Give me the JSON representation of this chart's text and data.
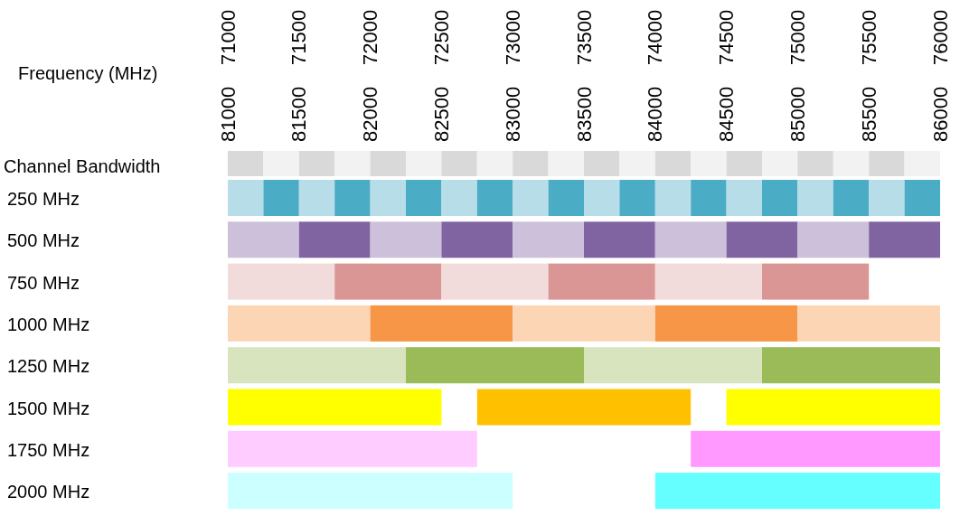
{
  "chart_data": {
    "type": "bar",
    "orientation": "horizontal",
    "xlabel": "Frequency (MHz)",
    "categories": [
      "Channel Bandwidth",
      "250 MHz",
      "500 MHz",
      "750 MHz",
      "1000 MHz",
      "1250 MHz",
      "1500 MHz",
      "1750 MHz",
      "2000 MHz"
    ],
    "xlim": [
      71000,
      76000
    ],
    "xticks": [
      71000,
      71500,
      72000,
      72500,
      73000,
      73500,
      74000,
      74500,
      75000,
      75500,
      76000
    ],
    "x2lim": [
      81000,
      86000
    ],
    "x2ticks": [
      81000,
      81500,
      82000,
      82500,
      83000,
      83500,
      84000,
      84500,
      85000,
      85500,
      86000
    ],
    "series": [
      {
        "values": [
          250,
          250,
          500,
          750,
          1000,
          1250,
          1500,
          1750,
          2000
        ],
        "base": [
          71000,
          71000,
          71000,
          71000,
          71000,
          71000,
          71000,
          71000,
          71000
        ],
        "colors": [
          "#d9d9d9",
          "#b7dde8",
          "#ccc0da",
          "#f2dcdb",
          "#fcd5b5",
          "#d7e4bd",
          "#ffff00",
          "#ffccff",
          "#ccffff"
        ]
      },
      {
        "values": [
          250,
          250,
          500,
          750,
          1000,
          1250,
          1500,
          1750,
          2000
        ],
        "base": [
          71250,
          71250,
          71500,
          71750,
          72000,
          72250,
          72750,
          74250,
          74000
        ],
        "colors": [
          "#f2f2f2",
          "#4bacc6",
          "#8064a2",
          "#da9694",
          "#f79646",
          "#9bbb59",
          "#ffc000",
          "#ff99ff",
          "#66ffff"
        ]
      },
      {
        "values": [
          250,
          250,
          500,
          750,
          1000,
          1250,
          1500,
          null,
          null
        ],
        "base": [
          71500,
          71500,
          72000,
          72500,
          73000,
          73500,
          74500,
          null,
          null
        ],
        "colors": [
          "#d9d9d9",
          "#b7dde8",
          "#ccc0da",
          "#f2dcdb",
          "#fcd5b5",
          "#d7e4bd",
          "#ffff00",
          null,
          null
        ]
      },
      {
        "values": [
          250,
          250,
          500,
          750,
          1000,
          1250,
          null,
          null,
          null
        ],
        "base": [
          71750,
          71750,
          72500,
          73250,
          74000,
          74750,
          null,
          null,
          null
        ],
        "colors": [
          "#f2f2f2",
          "#4bacc6",
          "#8064a2",
          "#da9694",
          "#f79646",
          "#9bbb59",
          null,
          null,
          null
        ]
      },
      {
        "values": [
          250,
          250,
          500,
          750,
          1000,
          null,
          null,
          null,
          null
        ],
        "base": [
          72000,
          72000,
          73000,
          74000,
          75000,
          null,
          null,
          null,
          null
        ],
        "colors": [
          "#d9d9d9",
          "#b7dde8",
          "#ccc0da",
          "#f2dcdb",
          "#fcd5b5",
          null,
          null,
          null,
          null
        ]
      },
      {
        "values": [
          250,
          250,
          500,
          750,
          null,
          null,
          null,
          null,
          null
        ],
        "base": [
          72250,
          72250,
          73500,
          74750,
          null,
          null,
          null,
          null,
          null
        ],
        "colors": [
          "#f2f2f2",
          "#4bacc6",
          "#8064a2",
          "#da9694",
          null,
          null,
          null,
          null,
          null
        ]
      },
      {
        "values": [
          250,
          250,
          500,
          null,
          null,
          null,
          null,
          null,
          null
        ],
        "base": [
          72500,
          72500,
          74000,
          null,
          null,
          null,
          null,
          null,
          null
        ],
        "colors": [
          "#d9d9d9",
          "#b7dde8",
          "#ccc0da",
          null,
          null,
          null,
          null,
          null,
          null
        ]
      },
      {
        "values": [
          250,
          250,
          500,
          null,
          null,
          null,
          null,
          null,
          null
        ],
        "base": [
          72750,
          72750,
          74500,
          null,
          null,
          null,
          null,
          null,
          null
        ],
        "colors": [
          "#f2f2f2",
          "#4bacc6",
          "#8064a2",
          null,
          null,
          null,
          null,
          null,
          null
        ]
      },
      {
        "values": [
          250,
          250,
          500,
          null,
          null,
          null,
          null,
          null,
          null
        ],
        "base": [
          73000,
          73000,
          75000,
          null,
          null,
          null,
          null,
          null,
          null
        ],
        "colors": [
          "#d9d9d9",
          "#b7dde8",
          "#ccc0da",
          null,
          null,
          null,
          null,
          null,
          null
        ]
      },
      {
        "values": [
          250,
          250,
          500,
          null,
          null,
          null,
          null,
          null,
          null
        ],
        "base": [
          73250,
          73250,
          75500,
          null,
          null,
          null,
          null,
          null,
          null
        ],
        "colors": [
          "#f2f2f2",
          "#4bacc6",
          "#8064a2",
          null,
          null,
          null,
          null,
          null,
          null
        ]
      },
      {
        "values": [
          250,
          250,
          null,
          null,
          null,
          null,
          null,
          null,
          null
        ],
        "base": [
          73500,
          73500,
          null,
          null,
          null,
          null,
          null,
          null,
          null
        ],
        "colors": [
          "#d9d9d9",
          "#b7dde8",
          null,
          null,
          null,
          null,
          null,
          null,
          null
        ]
      },
      {
        "values": [
          250,
          250,
          null,
          null,
          null,
          null,
          null,
          null,
          null
        ],
        "base": [
          73750,
          73750,
          null,
          null,
          null,
          null,
          null,
          null,
          null
        ],
        "colors": [
          "#f2f2f2",
          "#4bacc6",
          null,
          null,
          null,
          null,
          null,
          null,
          null
        ]
      },
      {
        "values": [
          250,
          250,
          null,
          null,
          null,
          null,
          null,
          null,
          null
        ],
        "base": [
          74000,
          74000,
          null,
          null,
          null,
          null,
          null,
          null,
          null
        ],
        "colors": [
          "#d9d9d9",
          "#b7dde8",
          null,
          null,
          null,
          null,
          null,
          null,
          null
        ]
      },
      {
        "values": [
          250,
          250,
          null,
          null,
          null,
          null,
          null,
          null,
          null
        ],
        "base": [
          74250,
          74250,
          null,
          null,
          null,
          null,
          null,
          null,
          null
        ],
        "colors": [
          "#f2f2f2",
          "#4bacc6",
          null,
          null,
          null,
          null,
          null,
          null,
          null
        ]
      },
      {
        "values": [
          250,
          250,
          null,
          null,
          null,
          null,
          null,
          null,
          null
        ],
        "base": [
          74500,
          74500,
          null,
          null,
          null,
          null,
          null,
          null,
          null
        ],
        "colors": [
          "#d9d9d9",
          "#b7dde8",
          null,
          null,
          null,
          null,
          null,
          null,
          null
        ]
      },
      {
        "values": [
          250,
          250,
          null,
          null,
          null,
          null,
          null,
          null,
          null
        ],
        "base": [
          74750,
          74750,
          null,
          null,
          null,
          null,
          null,
          null,
          null
        ],
        "colors": [
          "#f2f2f2",
          "#4bacc6",
          null,
          null,
          null,
          null,
          null,
          null,
          null
        ]
      },
      {
        "values": [
          250,
          250,
          null,
          null,
          null,
          null,
          null,
          null,
          null
        ],
        "base": [
          75000,
          75000,
          null,
          null,
          null,
          null,
          null,
          null,
          null
        ],
        "colors": [
          "#d9d9d9",
          "#b7dde8",
          null,
          null,
          null,
          null,
          null,
          null,
          null
        ]
      },
      {
        "values": [
          250,
          250,
          null,
          null,
          null,
          null,
          null,
          null,
          null
        ],
        "base": [
          75250,
          75250,
          null,
          null,
          null,
          null,
          null,
          null,
          null
        ],
        "colors": [
          "#f2f2f2",
          "#4bacc6",
          null,
          null,
          null,
          null,
          null,
          null,
          null
        ]
      },
      {
        "values": [
          250,
          250,
          null,
          null,
          null,
          null,
          null,
          null,
          null
        ],
        "base": [
          75500,
          75500,
          null,
          null,
          null,
          null,
          null,
          null,
          null
        ],
        "colors": [
          "#d9d9d9",
          "#b7dde8",
          null,
          null,
          null,
          null,
          null,
          null,
          null
        ]
      },
      {
        "values": [
          250,
          250,
          null,
          null,
          null,
          null,
          null,
          null,
          null
        ],
        "base": [
          75750,
          75750,
          null,
          null,
          null,
          null,
          null,
          null,
          null
        ],
        "colors": [
          "#f2f2f2",
          "#4bacc6",
          null,
          null,
          null,
          null,
          null,
          null,
          null
        ]
      }
    ]
  }
}
